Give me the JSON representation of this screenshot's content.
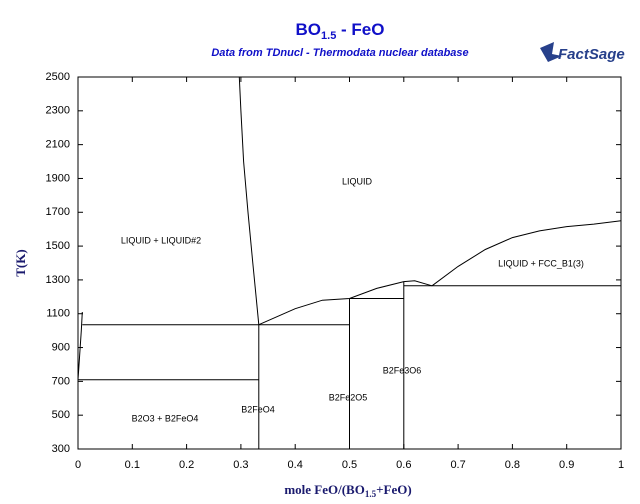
{
  "logo": "FactSage",
  "chart_data": {
    "type": "phase-diagram",
    "title": [
      "BO",
      "1.5",
      " - FeO"
    ],
    "subtitle": "Data from TDnucl - Thermodata nuclear database",
    "y_label": "T(K)",
    "x_label": [
      "mole FeO/(BO",
      "1.5",
      "+FeO)"
    ],
    "xlim": [
      0,
      1
    ],
    "ylim": [
      300,
      2500
    ],
    "xticks": [
      0,
      0.1,
      0.2,
      0.3,
      0.4,
      0.5,
      0.6,
      0.7,
      0.8,
      0.9,
      1
    ],
    "yticks": [
      300,
      500,
      700,
      900,
      1100,
      1300,
      1500,
      1700,
      1900,
      2100,
      2300,
      2500
    ],
    "color": "#000000",
    "series": [
      {
        "x": [
          0.008,
          0.006,
          0.003,
          0
        ],
        "y": [
          1110,
          1000,
          850,
          710
        ]
      },
      {
        "x": [
          0.297,
          0.3,
          0.305,
          0.313,
          0.322,
          0.328,
          0.333
        ],
        "y": [
          2500,
          2300,
          2000,
          1700,
          1400,
          1200,
          1035
        ]
      },
      {
        "x": [
          0.333,
          0.4,
          0.45,
          0.5,
          0.55,
          0.6,
          0.62,
          0.652
        ],
        "y": [
          1035,
          1130,
          1180,
          1190,
          1250,
          1290,
          1295,
          1265
        ]
      },
      {
        "x": [
          0.652,
          0.7,
          0.75,
          0.8,
          0.85,
          0.9,
          0.95,
          1
        ],
        "y": [
          1265,
          1380,
          1480,
          1550,
          1590,
          1615,
          1630,
          1650
        ]
      },
      {
        "x": [
          0.008,
          0.5
        ],
        "y": [
          1035,
          1035
        ]
      },
      {
        "x": [
          0,
          0.333
        ],
        "y": [
          710,
          710
        ]
      },
      {
        "x": [
          0.5,
          0.6
        ],
        "y": [
          1190,
          1190
        ]
      },
      {
        "x": [
          0.6,
          1
        ],
        "y": [
          1265,
          1265
        ]
      },
      {
        "x": [
          0.333,
          0.333
        ],
        "y": [
          300,
          1035
        ]
      },
      {
        "x": [
          0.5,
          0.5
        ],
        "y": [
          300,
          1190
        ]
      },
      {
        "x": [
          0.6,
          0.6
        ],
        "y": [
          300,
          1290
        ]
      }
    ],
    "annotations": [
      "LIQUID",
      "LIQUID + LIQUID#2",
      "LIQUID + FCC_B1(3)",
      "B2Fe3O6",
      "B2FeO4",
      "B2Fe2O5",
      "B2O3 + B2FeO4"
    ]
  }
}
